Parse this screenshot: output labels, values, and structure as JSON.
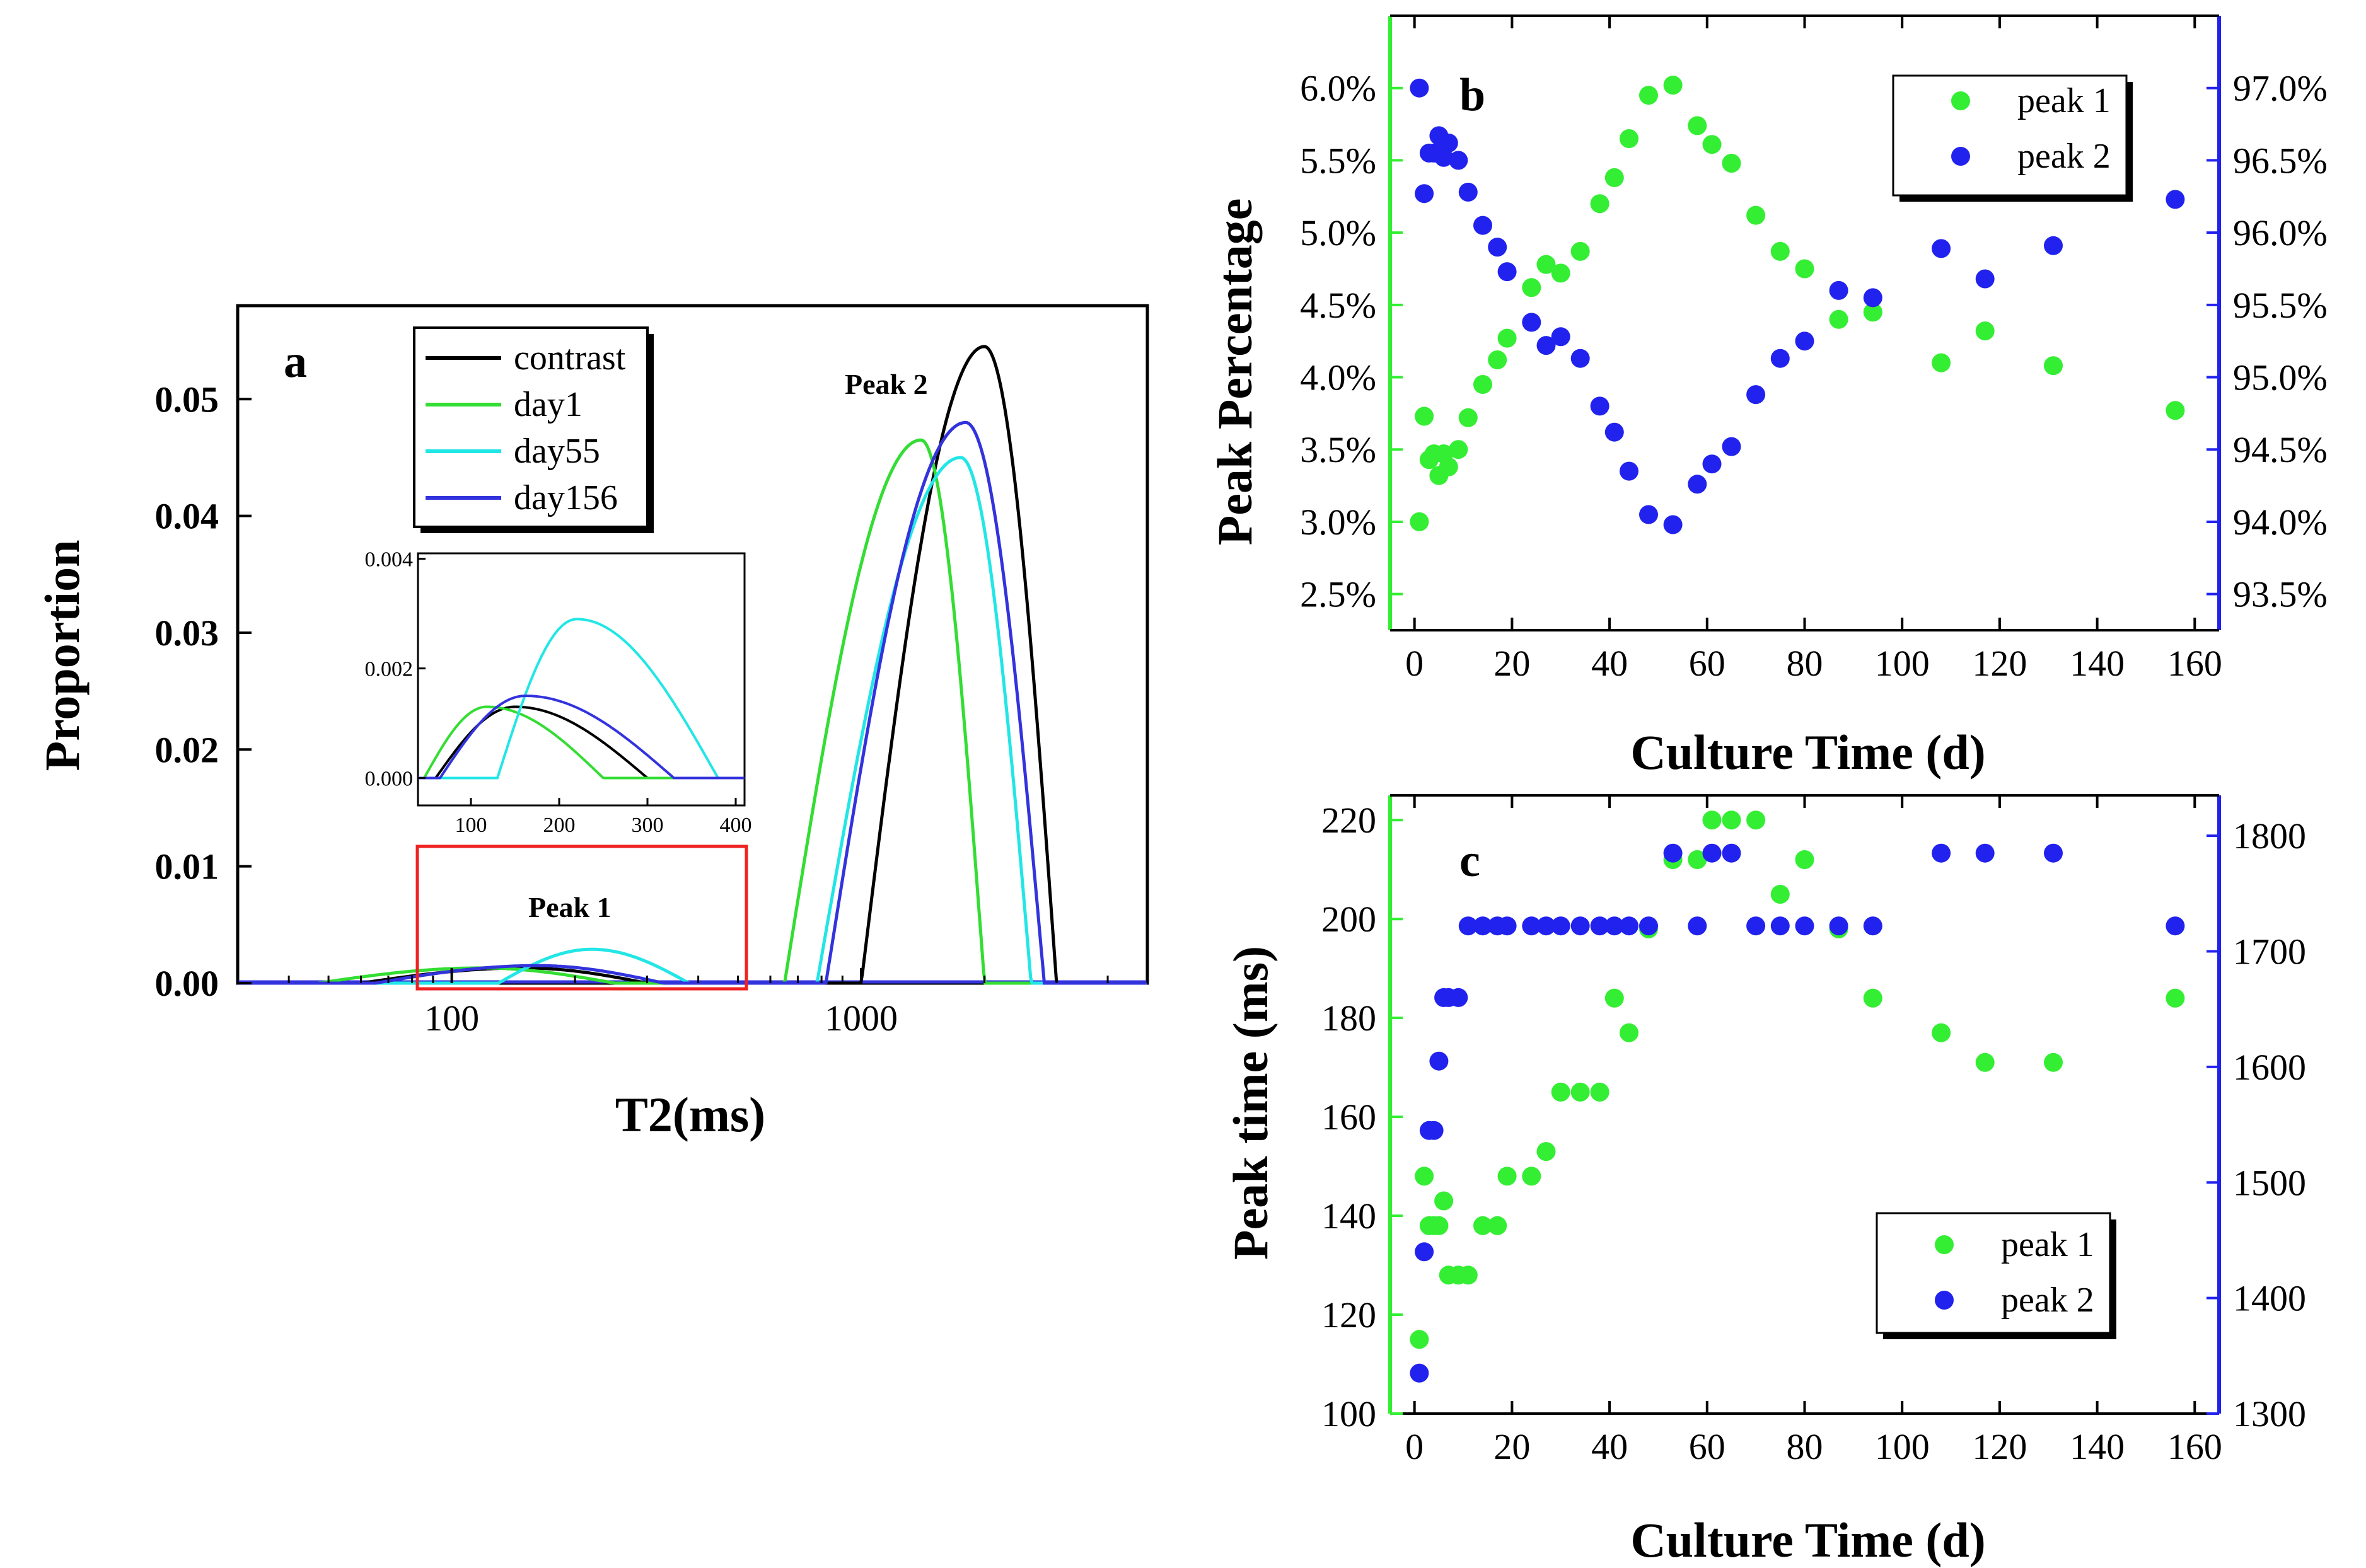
{
  "chart_data": [
    {
      "panel": "a",
      "type": "line",
      "title": "",
      "xlabel": "T2(ms)",
      "ylabel": "Proportion",
      "xscale": "log",
      "xlim": [
        30,
        5000
      ],
      "ylim": [
        0,
        0.058
      ],
      "xticks": [
        100,
        1000
      ],
      "yticks": [
        0.0,
        0.01,
        0.02,
        0.03,
        0.04,
        0.05
      ],
      "xtick_labels": [
        "100",
        "1000"
      ],
      "ytick_labels": [
        "0.00",
        "0.01",
        "0.02",
        "0.03",
        "0.04",
        "0.05"
      ],
      "annotations": [
        "a",
        "Peak 1",
        "Peak 2"
      ],
      "legend": {
        "position": "top-left",
        "entries": [
          "contrast",
          "day1",
          "day55",
          "day156"
        ]
      },
      "series": [
        {
          "name": "contrast",
          "color": "#000000",
          "peaks": [
            {
              "x0": 60,
              "x1": 300,
              "center": 150,
              "height": 0.0013
            },
            {
              "x0": 1000,
              "x1": 3000,
              "center": 2000,
              "height": 0.0545
            }
          ]
        },
        {
          "name": "day1",
          "color": "#33dd33",
          "peaks": [
            {
              "x0": 47,
              "x1": 250,
              "center": 118,
              "height": 0.0013
            },
            {
              "x0": 650,
              "x1": 2000,
              "center": 1400,
              "height": 0.0465
            }
          ]
        },
        {
          "name": "day55",
          "color": "#22e6e6",
          "peaks": [
            {
              "x0": 130,
              "x1": 380,
              "center": 220,
              "height": 0.0029
            },
            {
              "x0": 780,
              "x1": 2600,
              "center": 1750,
              "height": 0.045
            }
          ]
        },
        {
          "name": "day156",
          "color": "#3333dd",
          "peaks": [
            {
              "x0": 65,
              "x1": 330,
              "center": 162,
              "height": 0.0015
            },
            {
              "x0": 820,
              "x1": 2800,
              "center": 1800,
              "height": 0.048
            }
          ]
        }
      ],
      "inset": {
        "xlim": [
          40,
          410
        ],
        "ylim": [
          -0.0005,
          0.0041
        ],
        "xticks": [
          100,
          200,
          300,
          400
        ],
        "yticks": [
          0.0,
          0.002,
          0.004
        ],
        "xtick_labels": [
          "100",
          "200",
          "300",
          "400"
        ],
        "ytick_labels": [
          "0.000",
          "0.002",
          "0.004"
        ],
        "highlight_box_color": "#ee2222"
      }
    },
    {
      "panel": "b",
      "type": "scatter",
      "xlabel": "Culture Time (d)",
      "ylabel": "Peak Percentage",
      "xlim": [
        -5,
        165
      ],
      "ylim_left": [
        2.25,
        6.5
      ],
      "ylim_right": [
        93.25,
        97.5
      ],
      "xticks": [
        0,
        20,
        40,
        60,
        80,
        100,
        120,
        140,
        160
      ],
      "yticks_left": [
        2.5,
        3.0,
        3.5,
        4.0,
        4.5,
        5.0,
        5.5,
        6.0
      ],
      "yticks_right": [
        93.5,
        94.0,
        94.5,
        95.0,
        95.5,
        96.0,
        96.5,
        97.0
      ],
      "xtick_labels": [
        "0",
        "20",
        "40",
        "60",
        "80",
        "100",
        "120",
        "140",
        "160"
      ],
      "ytick_labels_left": [
        "2.5%",
        "3.0%",
        "3.5%",
        "4.0%",
        "4.5%",
        "5.0%",
        "5.5%",
        "6.0%"
      ],
      "ytick_labels_right": [
        "93.5%",
        "94.0%",
        "94.5%",
        "95.0%",
        "95.5%",
        "96.0%",
        "96.5%",
        "97.0%"
      ],
      "annotations": [
        "b"
      ],
      "legend": {
        "position": "top-right",
        "entries": [
          "peak 1",
          "peak 2"
        ]
      },
      "series": [
        {
          "name": "peak 1",
          "axis": "left",
          "color": "#33ee33",
          "x": [
            1,
            2,
            3,
            4,
            5,
            6,
            7,
            9,
            11,
            14,
            17,
            19,
            24,
            27,
            30,
            34,
            38,
            41,
            44,
            48,
            53,
            58,
            61,
            65,
            70,
            75,
            80,
            87,
            94,
            108,
            117,
            131,
            156
          ],
          "y": [
            3.0,
            3.73,
            3.43,
            3.47,
            3.32,
            3.47,
            3.38,
            3.5,
            3.72,
            3.95,
            4.12,
            4.27,
            4.62,
            4.78,
            4.72,
            4.87,
            5.2,
            5.38,
            5.65,
            5.95,
            6.02,
            5.74,
            5.61,
            5.48,
            5.12,
            4.87,
            4.75,
            4.4,
            4.45,
            4.1,
            4.32,
            4.08,
            3.77
          ]
        },
        {
          "name": "peak 2",
          "axis": "right",
          "color": "#2222ee",
          "x": [
            1,
            2,
            3,
            4,
            5,
            6,
            7,
            9,
            11,
            14,
            17,
            19,
            24,
            27,
            30,
            34,
            38,
            41,
            44,
            48,
            53,
            58,
            61,
            65,
            70,
            75,
            80,
            87,
            94,
            108,
            117,
            131,
            156
          ],
          "y": [
            97.0,
            96.27,
            96.55,
            96.55,
            96.67,
            96.52,
            96.62,
            96.5,
            96.28,
            96.05,
            95.9,
            95.73,
            95.38,
            95.22,
            95.28,
            95.13,
            94.8,
            94.62,
            94.35,
            94.05,
            93.98,
            94.26,
            94.4,
            94.52,
            94.88,
            95.13,
            95.25,
            95.6,
            95.55,
            95.89,
            95.68,
            95.91,
            96.23
          ]
        }
      ]
    },
    {
      "panel": "c",
      "type": "scatter",
      "xlabel": "Culture Time (d)",
      "ylabel": "Peak time (ms)",
      "xlim": [
        -5,
        165
      ],
      "ylim_left": [
        100,
        225
      ],
      "ylim_right": [
        1300,
        1835
      ],
      "xticks": [
        0,
        20,
        40,
        60,
        80,
        100,
        120,
        140,
        160
      ],
      "yticks_left": [
        100,
        120,
        140,
        160,
        180,
        200,
        220
      ],
      "yticks_right": [
        1300,
        1400,
        1500,
        1600,
        1700,
        1800
      ],
      "xtick_labels": [
        "0",
        "20",
        "40",
        "60",
        "80",
        "100",
        "120",
        "140",
        "160"
      ],
      "ytick_labels_left": [
        "100",
        "120",
        "140",
        "160",
        "180",
        "200",
        "220"
      ],
      "ytick_labels_right": [
        "1300",
        "1400",
        "1500",
        "1600",
        "1700",
        "1800"
      ],
      "annotations": [
        "c"
      ],
      "legend": {
        "position": "bottom-right",
        "entries": [
          "peak 1",
          "peak 2"
        ]
      },
      "series": [
        {
          "name": "peak 1",
          "axis": "left",
          "color": "#33ee33",
          "x": [
            1,
            2,
            3,
            4,
            5,
            6,
            7,
            9,
            11,
            14,
            17,
            19,
            24,
            27,
            30,
            34,
            38,
            41,
            44,
            48,
            53,
            58,
            61,
            65,
            70,
            75,
            80,
            87,
            94,
            108,
            117,
            131,
            156
          ],
          "y": [
            115,
            148,
            138,
            138,
            138,
            143,
            128,
            128,
            128,
            138,
            138,
            148,
            148,
            153,
            165,
            165,
            165,
            184,
            177,
            198,
            212,
            212,
            220,
            220,
            220,
            205,
            212,
            198,
            184,
            177,
            171,
            171,
            184
          ]
        },
        {
          "name": "peak 2",
          "axis": "right",
          "color": "#2222ee",
          "x": [
            1,
            2,
            3,
            4,
            5,
            6,
            7,
            9,
            11,
            14,
            17,
            19,
            24,
            27,
            30,
            34,
            38,
            41,
            44,
            48,
            53,
            58,
            61,
            65,
            70,
            75,
            80,
            87,
            94,
            108,
            117,
            131,
            156
          ],
          "y": [
            1335,
            1440,
            1545,
            1545,
            1605,
            1660,
            1660,
            1660,
            1722,
            1722,
            1722,
            1722,
            1722,
            1722,
            1722,
            1722,
            1722,
            1722,
            1722,
            1722,
            1785,
            1722,
            1785,
            1785,
            1722,
            1722,
            1722,
            1722,
            1722,
            1785,
            1785,
            1785,
            1722
          ]
        }
      ]
    }
  ]
}
